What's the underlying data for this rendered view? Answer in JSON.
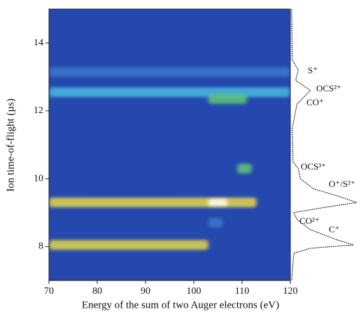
{
  "chart_data": {
    "type": "heatmap",
    "xlabel": "Energy of the sum of two Auger electrons (eV)",
    "ylabel": "Ion time-of-flight (µs)",
    "xlim": [
      70,
      120
    ],
    "ylim": [
      7,
      15
    ],
    "xticks": [
      70,
      80,
      90,
      100,
      110,
      120
    ],
    "yticks": [
      8,
      10,
      12,
      14
    ],
    "background": "#2448ad",
    "bands": [
      {
        "y": 13.15,
        "x": [
          70,
          120
        ],
        "level": 0.25
      },
      {
        "y": 12.55,
        "x": [
          70,
          120
        ],
        "level": 0.4
      },
      {
        "y": 12.35,
        "x": [
          103,
          111
        ],
        "level": 0.6
      },
      {
        "y": 10.3,
        "x": [
          109,
          112
        ],
        "level": 0.55
      },
      {
        "y": 9.3,
        "x": [
          70,
          113
        ],
        "level": 0.8
      },
      {
        "y": 9.3,
        "x": [
          103,
          107
        ],
        "level": 1.0
      },
      {
        "y": 8.7,
        "x": [
          103,
          106
        ],
        "level": 0.25
      },
      {
        "y": 8.05,
        "x": [
          70,
          103
        ],
        "level": 0.75
      }
    ],
    "spectrum": {
      "y": [
        15,
        13.5,
        13.2,
        12.9,
        12.6,
        12.4,
        12.2,
        11.5,
        10.5,
        10.3,
        10.0,
        9.7,
        9.5,
        9.3,
        9.15,
        9.0,
        8.8,
        8.5,
        8.2,
        8.05,
        7.95,
        7.8,
        7.0
      ],
      "intensity": [
        0.02,
        0.03,
        0.12,
        0.08,
        0.3,
        0.2,
        0.1,
        0.03,
        0.04,
        0.12,
        0.15,
        0.35,
        0.7,
        1.0,
        0.5,
        0.05,
        0.1,
        0.3,
        0.7,
        0.95,
        0.3,
        0.05,
        0.02
      ]
    },
    "annotations": [
      "S⁺",
      "OCS²⁺",
      "CO⁺",
      "OCS³⁺",
      "O⁺/S²⁺",
      "CO²⁺",
      "C⁺"
    ]
  }
}
